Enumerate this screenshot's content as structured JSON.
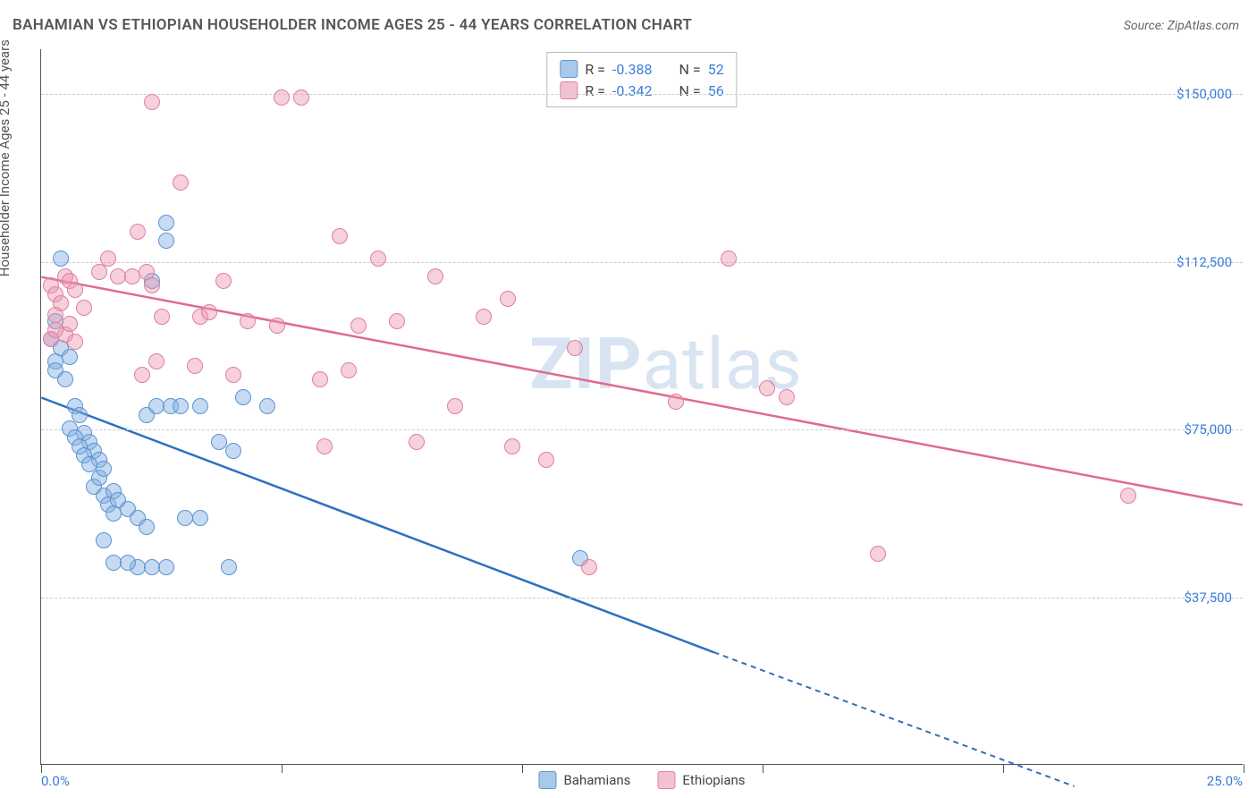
{
  "title": "BAHAMIAN VS ETHIOPIAN HOUSEHOLDER INCOME AGES 25 - 44 YEARS CORRELATION CHART",
  "source": "Source: ZipAtlas.com",
  "watermark_a": "ZIP",
  "watermark_b": "atlas",
  "chart": {
    "type": "scatter",
    "ylabel": "Householder Income Ages 25 - 44 years",
    "xlim": [
      0,
      25
    ],
    "ylim": [
      0,
      160000
    ],
    "y_ticks": [
      37500,
      75000,
      112500,
      150000
    ],
    "y_tick_labels": [
      "$37,500",
      "$75,000",
      "$112,500",
      "$150,000"
    ],
    "x_tick_positions": [
      0,
      5,
      10,
      15,
      20,
      25
    ],
    "x_label_min": "0.0%",
    "x_label_max": "25.0%",
    "grid_color": "#cccccc",
    "background_color": "#ffffff",
    "marker_radius": 9,
    "series": [
      {
        "name": "Bahamians",
        "fill": "rgba(129,173,227,0.45)",
        "stroke": "#5b94d0",
        "swatch_fill": "#a9c9ea",
        "swatch_stroke": "#5b94d0",
        "line_color": "#2f6fc0",
        "R": "-0.388",
        "N": "52",
        "trend": {
          "x1": 0,
          "y1": 82000,
          "x2": 14,
          "y2": 25000,
          "x3": 21.5,
          "y3": -5000
        },
        "points": [
          [
            0.2,
            95000
          ],
          [
            0.3,
            90000
          ],
          [
            0.4,
            93000
          ],
          [
            0.3,
            88000
          ],
          [
            0.5,
            86000
          ],
          [
            0.6,
            91000
          ],
          [
            0.3,
            99000
          ],
          [
            0.4,
            113000
          ],
          [
            0.7,
            80000
          ],
          [
            0.8,
            78000
          ],
          [
            0.9,
            74000
          ],
          [
            1.0,
            72000
          ],
          [
            1.1,
            70000
          ],
          [
            1.2,
            68000
          ],
          [
            1.3,
            60000
          ],
          [
            1.4,
            58000
          ],
          [
            1.5,
            56000
          ],
          [
            1.1,
            62000
          ],
          [
            1.2,
            64000
          ],
          [
            1.3,
            66000
          ],
          [
            0.6,
            75000
          ],
          [
            0.7,
            73000
          ],
          [
            0.8,
            71000
          ],
          [
            0.9,
            69000
          ],
          [
            1.0,
            67000
          ],
          [
            1.5,
            61000
          ],
          [
            1.6,
            59000
          ],
          [
            1.8,
            57000
          ],
          [
            2.0,
            55000
          ],
          [
            2.2,
            53000
          ],
          [
            2.0,
            44000
          ],
          [
            2.3,
            44000
          ],
          [
            2.6,
            44000
          ],
          [
            1.5,
            45000
          ],
          [
            1.8,
            45000
          ],
          [
            2.2,
            78000
          ],
          [
            2.4,
            80000
          ],
          [
            2.7,
            80000
          ],
          [
            2.9,
            80000
          ],
          [
            3.3,
            80000
          ],
          [
            3.0,
            55000
          ],
          [
            3.3,
            55000
          ],
          [
            3.7,
            72000
          ],
          [
            3.9,
            44000
          ],
          [
            4.0,
            70000
          ],
          [
            4.2,
            82000
          ],
          [
            4.7,
            80000
          ],
          [
            2.6,
            117000
          ],
          [
            2.6,
            121000
          ],
          [
            2.3,
            108000
          ],
          [
            11.2,
            46000
          ],
          [
            1.3,
            50000
          ]
        ]
      },
      {
        "name": "Ethiopians",
        "fill": "rgba(235,150,175,0.45)",
        "stroke": "#e07f9f",
        "swatch_fill": "#f3c2d0",
        "swatch_stroke": "#e07f9f",
        "line_color": "#e06a8f",
        "R": "-0.342",
        "N": "56",
        "trend": {
          "x1": 0,
          "y1": 109000,
          "x2": 25,
          "y2": 58000
        },
        "points": [
          [
            0.2,
            107000
          ],
          [
            0.3,
            105000
          ],
          [
            0.4,
            103000
          ],
          [
            0.5,
            109000
          ],
          [
            0.6,
            108000
          ],
          [
            0.7,
            106000
          ],
          [
            0.3,
            100500
          ],
          [
            0.5,
            96000
          ],
          [
            0.7,
            94500
          ],
          [
            0.6,
            98500
          ],
          [
            0.9,
            102000
          ],
          [
            1.2,
            110000
          ],
          [
            1.4,
            113000
          ],
          [
            1.6,
            109000
          ],
          [
            1.9,
            109000
          ],
          [
            2.2,
            110000
          ],
          [
            2.3,
            107000
          ],
          [
            2.5,
            100000
          ],
          [
            2.4,
            90000
          ],
          [
            2.9,
            130000
          ],
          [
            2.3,
            148000
          ],
          [
            2.1,
            87000
          ],
          [
            3.2,
            89000
          ],
          [
            3.3,
            100000
          ],
          [
            3.5,
            101000
          ],
          [
            3.8,
            108000
          ],
          [
            4.0,
            87000
          ],
          [
            4.3,
            99000
          ],
          [
            4.9,
            98000
          ],
          [
            5.0,
            149000
          ],
          [
            5.4,
            149000
          ],
          [
            5.8,
            86000
          ],
          [
            5.9,
            71000
          ],
          [
            6.2,
            118000
          ],
          [
            6.4,
            88000
          ],
          [
            6.6,
            98000
          ],
          [
            7.0,
            113000
          ],
          [
            7.4,
            99000
          ],
          [
            7.8,
            72000
          ],
          [
            8.2,
            109000
          ],
          [
            8.6,
            80000
          ],
          [
            9.2,
            100000
          ],
          [
            9.7,
            104000
          ],
          [
            9.8,
            71000
          ],
          [
            10.5,
            68000
          ],
          [
            11.1,
            93000
          ],
          [
            11.4,
            44000
          ],
          [
            13.2,
            81000
          ],
          [
            14.3,
            113000
          ],
          [
            15.1,
            84000
          ],
          [
            15.5,
            82000
          ],
          [
            17.4,
            47000
          ],
          [
            22.6,
            60000
          ],
          [
            2.0,
            119000
          ],
          [
            0.2,
            95000
          ],
          [
            0.3,
            97000
          ]
        ]
      }
    ],
    "stat_legend_labels": {
      "R": "R =",
      "N": "N ="
    },
    "series_legend_labels": [
      "Bahamians",
      "Ethiopians"
    ]
  }
}
